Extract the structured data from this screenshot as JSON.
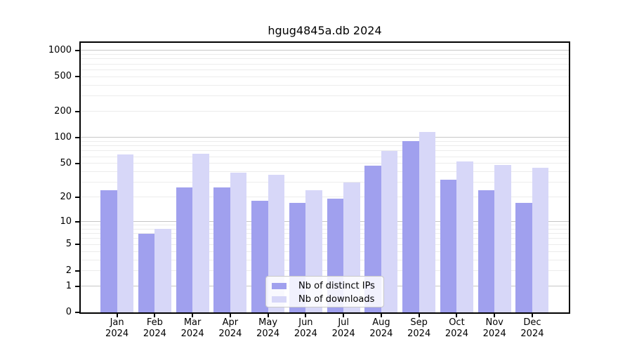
{
  "title": "hgug4845a.db 2024",
  "chart_data": {
    "type": "bar",
    "title": "hgug4845a.db 2024",
    "categories": [
      "Jan",
      "Feb",
      "Mar",
      "Apr",
      "May",
      "Jun",
      "Jul",
      "Aug",
      "Sep",
      "Oct",
      "Nov",
      "Dec"
    ],
    "x_year_label": "2024",
    "series": [
      {
        "name": "Nb of distinct IPs",
        "color": "#a0a0ee",
        "values": [
          24,
          7,
          26,
          26,
          18,
          17,
          19,
          47,
          91,
          32,
          24,
          17
        ]
      },
      {
        "name": "Nb of downloads",
        "color": "#d7d7f8",
        "values": [
          63,
          8,
          65,
          39,
          37,
          24,
          30,
          70,
          116,
          53,
          48,
          44
        ]
      }
    ],
    "yscale": "log1p",
    "yticks": [
      0,
      1,
      2,
      5,
      10,
      20,
      50,
      100,
      200,
      500,
      1000
    ],
    "ylim": [
      0,
      1230
    ],
    "grid": "on",
    "legend_position": "bottom-center"
  },
  "colors": {
    "bar_distinct_ips": "#a0a0ee",
    "bar_downloads": "#d7d7f8",
    "grid_major": "#c6c6c6",
    "grid_minor": "#ececec",
    "axis": "#000000",
    "background": "#ffffff",
    "text": "#000000"
  },
  "legend": {
    "items": [
      "Nb of distinct IPs",
      "Nb of downloads"
    ]
  }
}
